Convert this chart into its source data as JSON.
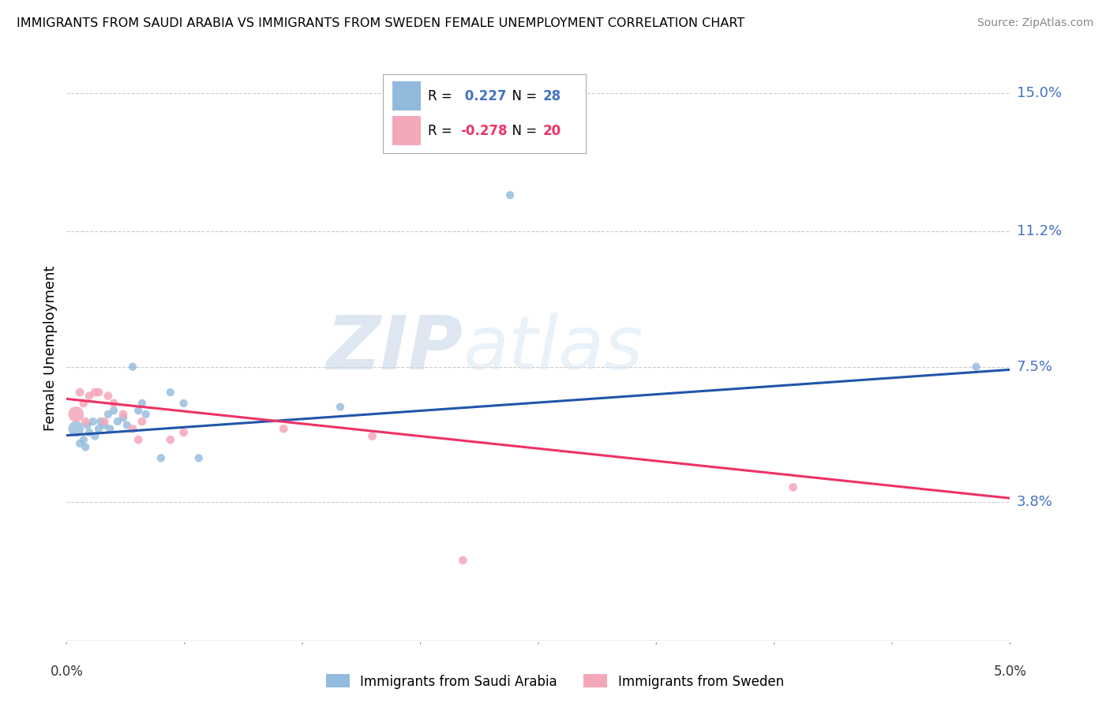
{
  "title": "IMMIGRANTS FROM SAUDI ARABIA VS IMMIGRANTS FROM SWEDEN FEMALE UNEMPLOYMENT CORRELATION CHART",
  "source": "Source: ZipAtlas.com",
  "ylabel": "Female Unemployment",
  "x_min": 0.0,
  "x_max": 5.0,
  "y_min": 0.0,
  "y_max": 16.0,
  "y_ticks": [
    3.8,
    7.5,
    11.2,
    15.0
  ],
  "y_tick_labels": [
    "3.8%",
    "7.5%",
    "11.2%",
    "15.0%"
  ],
  "x_tick_labels": [
    "0.0%",
    "5.0%"
  ],
  "series1_label": "Immigrants from Saudi Arabia",
  "series1_color": "#92BADD",
  "series1_R": "0.227",
  "series1_N": "28",
  "series2_label": "Immigrants from Sweden",
  "series2_color": "#F4A7B9",
  "series2_R": "-0.278",
  "series2_N": "20",
  "blue_line_color": "#2255AA",
  "pink_line_color": "#EE3366",
  "watermark_zip": "ZIP",
  "watermark_atlas": "atlas",
  "series1_x": [
    0.05,
    0.07,
    0.09,
    0.1,
    0.11,
    0.12,
    0.14,
    0.15,
    0.17,
    0.18,
    0.2,
    0.22,
    0.23,
    0.25,
    0.27,
    0.3,
    0.32,
    0.35,
    0.38,
    0.4,
    0.42,
    0.5,
    0.55,
    0.62,
    0.7,
    1.45,
    2.35,
    4.82
  ],
  "series1_y": [
    5.8,
    5.4,
    5.5,
    5.3,
    5.9,
    5.7,
    6.0,
    5.6,
    5.8,
    6.0,
    5.9,
    6.2,
    5.8,
    6.3,
    6.0,
    6.1,
    5.9,
    7.5,
    6.3,
    6.5,
    6.2,
    5.0,
    6.8,
    6.5,
    5.0,
    6.4,
    12.2,
    7.5
  ],
  "series1_sizes": [
    60,
    60,
    60,
    60,
    60,
    60,
    60,
    60,
    60,
    60,
    60,
    60,
    60,
    60,
    60,
    60,
    60,
    60,
    60,
    60,
    60,
    60,
    60,
    60,
    60,
    60,
    60,
    60
  ],
  "series2_x": [
    0.05,
    0.07,
    0.09,
    0.1,
    0.12,
    0.15,
    0.17,
    0.2,
    0.22,
    0.25,
    0.3,
    0.35,
    0.38,
    0.4,
    0.55,
    0.62,
    1.15,
    1.62,
    2.1,
    3.85
  ],
  "series2_y": [
    6.2,
    6.8,
    6.5,
    6.0,
    6.7,
    6.8,
    6.8,
    6.0,
    6.7,
    6.5,
    6.2,
    5.8,
    5.5,
    6.0,
    5.5,
    5.7,
    5.8,
    5.6,
    2.2,
    4.2
  ],
  "series2_sizes": [
    200,
    60,
    60,
    60,
    60,
    60,
    60,
    60,
    60,
    60,
    60,
    60,
    60,
    60,
    60,
    60,
    60,
    60,
    60,
    60
  ],
  "blue_trend": [
    5.62,
    7.42
  ],
  "pink_trend": [
    6.62,
    3.9
  ],
  "legend_R1_color": "#4472C4",
  "legend_R2_color": "#EE3366",
  "legend_N1_color": "#4472C4",
  "legend_N2_color": "#EE3366"
}
